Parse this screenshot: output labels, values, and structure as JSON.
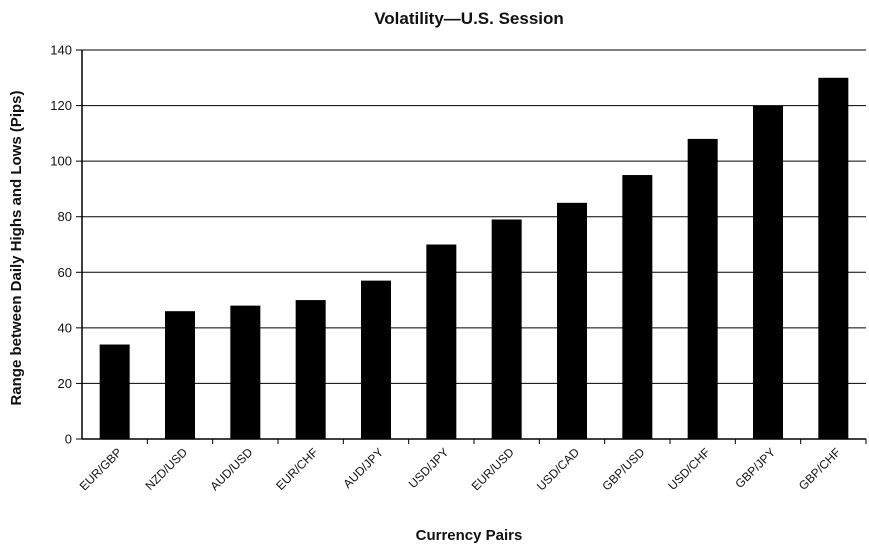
{
  "chart_data": {
    "type": "bar",
    "title": "Volatility—U.S. Session",
    "xlabel": "Currency Pairs",
    "ylabel": "Range between Daily Highs and Lows (Pips)",
    "categories": [
      "EUR/GBP",
      "NZD/USD",
      "AUD/USD",
      "EUR/CHF",
      "AUD/JPY",
      "USD/JPY",
      "EUR/USD",
      "USD/CAD",
      "GBP/USD",
      "USD/CHF",
      "GBP/JPY",
      "GBP/CHF"
    ],
    "values": [
      34,
      46,
      48,
      50,
      57,
      70,
      79,
      85,
      95,
      108,
      120,
      130
    ],
    "ylim": [
      0,
      140
    ],
    "yticks": [
      "0",
      "20",
      "40",
      "60",
      "80",
      "100",
      "120",
      "140"
    ],
    "grid": "horizontal",
    "bar_color": "#000000"
  }
}
